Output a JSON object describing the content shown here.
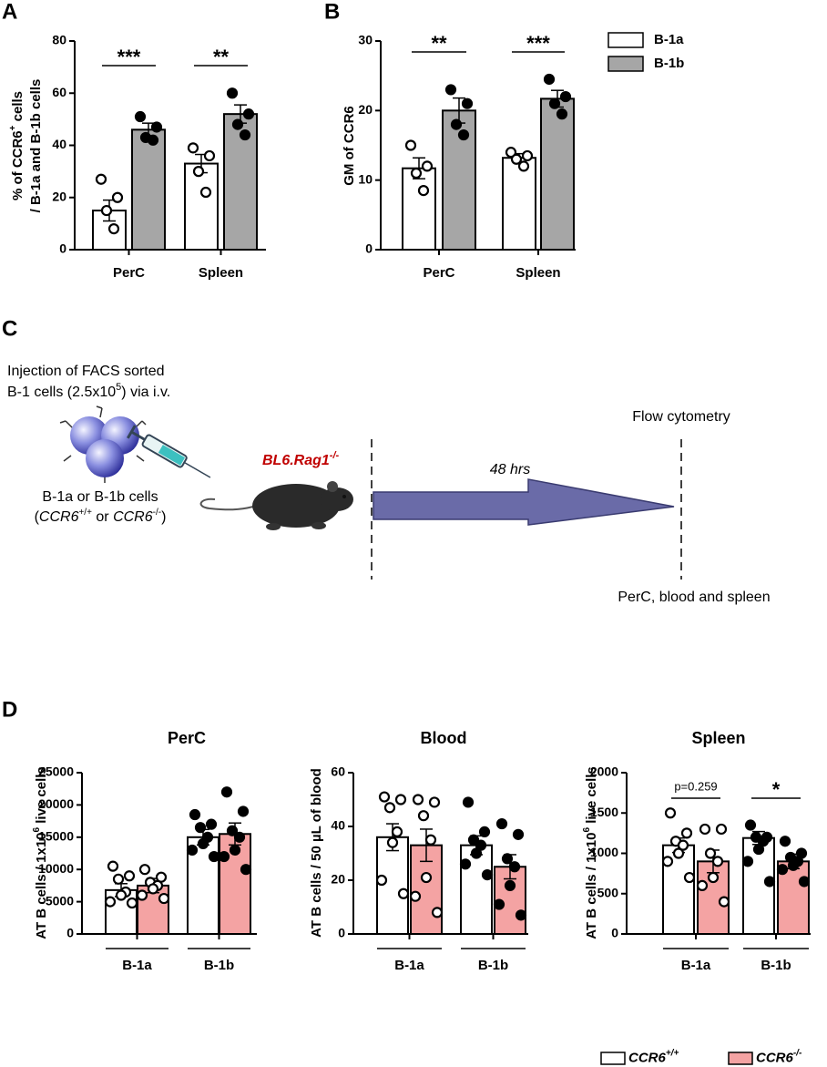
{
  "panel_labels": [
    "A",
    "B",
    "C",
    "D"
  ],
  "chart_data": [
    {
      "type": "bar",
      "ylabel": [
        [
          "% of CCR6",
          "+",
          " cells"
        ],
        [
          "/ B-1a and B-1b cells"
        ]
      ],
      "categories": [
        "PerC",
        "Spleen"
      ],
      "ylim": [
        0,
        80
      ],
      "yticks": [
        0,
        20,
        40,
        60,
        80
      ],
      "significance": [
        "***",
        "**"
      ],
      "series": [
        {
          "color": "#ffffff",
          "marker": "open",
          "values": [
            15,
            33
          ],
          "errors": [
            4,
            3.5
          ],
          "points": [
            [
              27,
              20,
              15,
              8
            ],
            [
              39,
              36,
              30,
              22
            ]
          ]
        },
        {
          "color": "#a6a6a6",
          "marker": "filled",
          "values": [
            46,
            52
          ],
          "errors": [
            2.5,
            3.5
          ],
          "points": [
            [
              51,
              47,
              43,
              42
            ],
            [
              60,
              52,
              48,
              44
            ]
          ]
        }
      ]
    },
    {
      "type": "bar",
      "ylabel": [
        [
          "GM of CCR6"
        ]
      ],
      "categories": [
        "PerC",
        "Spleen"
      ],
      "ylim": [
        0,
        30
      ],
      "yticks": [
        0,
        10,
        20,
        30
      ],
      "significance": [
        "**",
        "***"
      ],
      "series": [
        {
          "name": "B-1a",
          "color": "#ffffff",
          "marker": "open",
          "values": [
            11.7,
            13.2
          ],
          "errors": [
            1.5,
            0.6
          ],
          "points": [
            [
              15,
              12,
              11,
              8.5
            ],
            [
              14,
              13.5,
              13,
              12
            ]
          ]
        },
        {
          "name": "B-1b",
          "color": "#a6a6a6",
          "marker": "filled",
          "values": [
            20,
            21.7
          ],
          "errors": [
            1.8,
            1.2
          ],
          "points": [
            [
              23,
              21,
              18,
              16.5
            ],
            [
              24.5,
              22,
              21,
              19.5
            ]
          ]
        }
      ]
    },
    {
      "type": "bar",
      "title": "PerC",
      "ylabel": [
        [
          "AT B cells / 1x10",
          "6",
          " live cells"
        ]
      ],
      "categories": [
        "B-1a",
        "B-1b"
      ],
      "category_markers": [
        "open",
        "filled"
      ],
      "ylim": [
        0,
        25000
      ],
      "yticks": [
        0,
        5000,
        10000,
        15000,
        20000,
        25000
      ],
      "series": [
        {
          "color": "#ffffff",
          "values": [
            6800,
            15000
          ],
          "errors": [
            1000,
            1200
          ],
          "points": [
            [
              10500,
              9000,
              8500,
              6500,
              6000,
              5000,
              4800
            ],
            [
              18500,
              17000,
              16500,
              15000,
              14000,
              13000,
              12000
            ]
          ]
        },
        {
          "color": "#f4a3a3",
          "values": [
            7500,
            15500
          ],
          "errors": [
            1100,
            1700
          ],
          "points": [
            [
              10000,
              8800,
              8000,
              7500,
              7000,
              6000,
              5500
            ],
            [
              22000,
              19000,
              16000,
              15000,
              13000,
              12000,
              10000
            ]
          ]
        }
      ]
    },
    {
      "type": "bar",
      "title": "Blood",
      "ylabel": [
        [
          "AT B cells / 50 µL of blood"
        ]
      ],
      "categories": [
        "B-1a",
        "B-1b"
      ],
      "category_markers": [
        "open",
        "filled"
      ],
      "ylim": [
        0,
        60
      ],
      "yticks": [
        0,
        20,
        40,
        60
      ],
      "series": [
        {
          "color": "#ffffff",
          "values": [
            36,
            33
          ],
          "errors": [
            5,
            3.5
          ],
          "points": [
            [
              51,
              50,
              47,
              38,
              34,
              20,
              15
            ],
            [
              49,
              38,
              35,
              33,
              30,
              26,
              22
            ]
          ]
        },
        {
          "color": "#f4a3a3",
          "values": [
            33,
            25
          ],
          "errors": [
            6,
            4.5
          ],
          "points": [
            [
              50,
              49,
              44,
              35,
              21,
              14,
              8
            ],
            [
              41,
              37,
              28,
              25,
              18,
              11,
              7
            ]
          ]
        }
      ]
    },
    {
      "type": "bar",
      "title": "Spleen",
      "ylabel": [
        [
          "AT B cells / 1x10",
          "6",
          " live cells"
        ]
      ],
      "categories": [
        "B-1a",
        "B-1b"
      ],
      "category_markers": [
        "open",
        "filled"
      ],
      "ylim": [
        0,
        2000
      ],
      "yticks": [
        0,
        500,
        1000,
        1500,
        2000
      ],
      "significance": [
        "p=0.259",
        "*"
      ],
      "series": [
        {
          "name": "CCR6",
          "name_sup": "+/+",
          "color": "#ffffff",
          "values": [
            1100,
            1190
          ],
          "errors": [
            90,
            80
          ],
          "points": [
            [
              1500,
              1250,
              1150,
              1100,
              1000,
              900,
              700
            ],
            [
              1350,
              1200,
              1200,
              1150,
              1050,
              900,
              650
            ]
          ]
        },
        {
          "name": "CCR6",
          "name_sup": "-/-",
          "color": "#f4a3a3",
          "values": [
            900,
            900
          ],
          "errors": [
            140,
            90
          ],
          "points": [
            [
              1300,
              1300,
              1000,
              900,
              700,
              600,
              400
            ],
            [
              1150,
              1000,
              950,
              900,
              850,
              800,
              650
            ]
          ]
        }
      ]
    }
  ],
  "diagram": {
    "injection_text": {
      "line1": "Injection of FACS sorted",
      "line2": "B-1 cells (2.5x10",
      "line2_sup": "5",
      "line2_end": ") via i.v."
    },
    "cells_text": {
      "line1": "B-1a or B-1b cells",
      "open": "(",
      "gene1": "CCR6",
      "gene1_sup": "+/+",
      "or": " or ",
      "gene2": "CCR6",
      "gene2_sup": "-/-",
      "close": ")"
    },
    "recipient": {
      "name": "BL6.Rag1",
      "sup": "-/-"
    },
    "duration": "48 hrs",
    "readout": "Flow cytometry",
    "tissues": "PerC, blood and spleen"
  }
}
